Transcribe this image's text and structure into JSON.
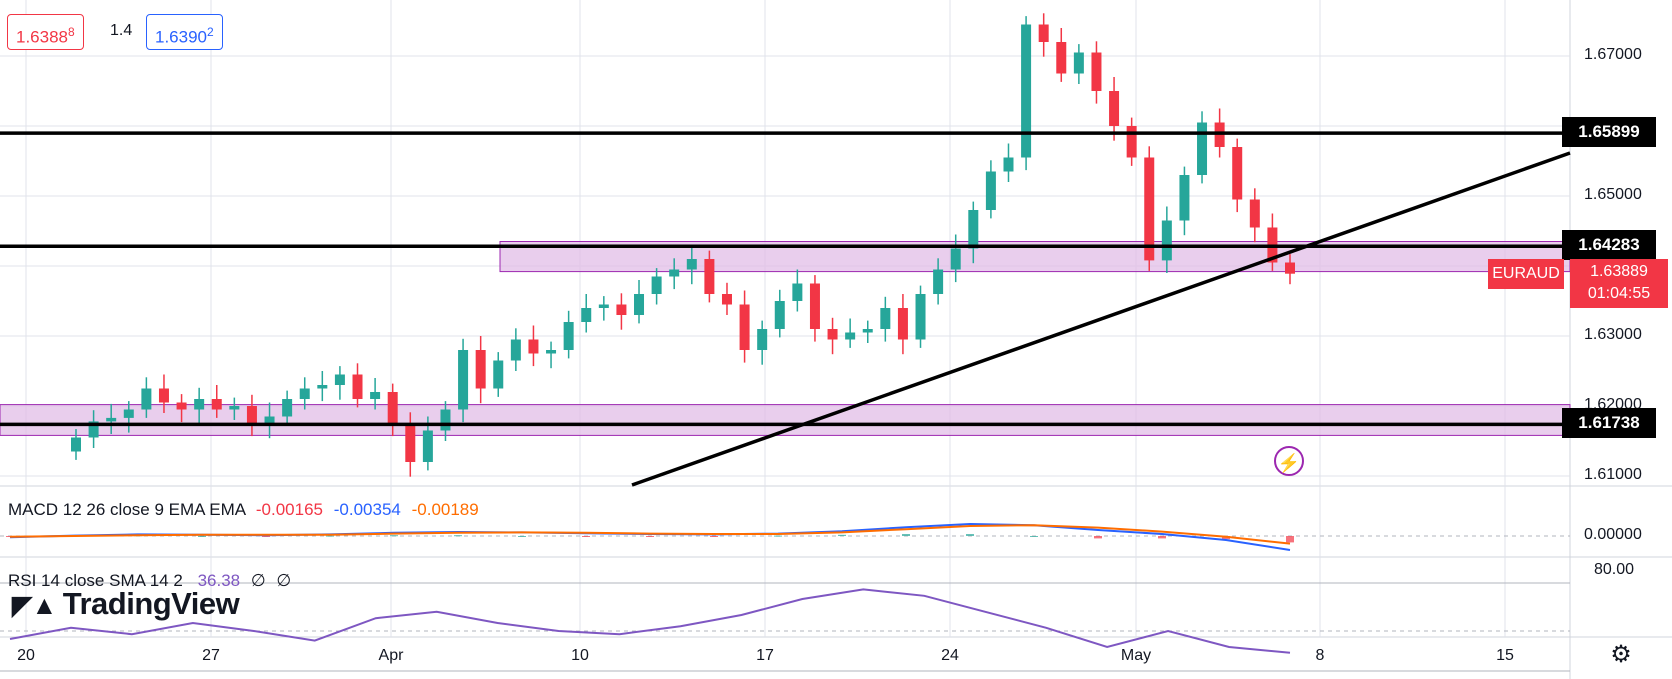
{
  "header": {
    "bid_price": "1.6388",
    "bid_pip": "8",
    "spread": "1.4",
    "ask_price": "1.6390",
    "ask_pip": "2"
  },
  "symbol": {
    "name": "EURAUD",
    "last_price": "1.63889",
    "countdown": "01:04:55",
    "color": "#f23645"
  },
  "price_axis": {
    "ticks": [
      "1.67000",
      "1.65000",
      "1.63000",
      "1.62000",
      "1.61000"
    ],
    "marked_levels": [
      "1.65899",
      "1.64283",
      "1.61738"
    ]
  },
  "time_axis": {
    "labels": [
      "20",
      "27",
      "Apr",
      "10",
      "17",
      "24",
      "May",
      "8",
      "15"
    ]
  },
  "macd": {
    "title": "MACD 12 26 close 9 EMA EMA",
    "histogram_value": "-0.00165",
    "macd_value": "-0.00354",
    "signal_value": "-0.00189",
    "axis_tick": "0.00000",
    "colors": {
      "histogram": "#f23645",
      "macd": "#2962ff",
      "signal": "#ff6d00"
    }
  },
  "rsi": {
    "title": "RSI 14 close SMA 14 2",
    "value": "36.38",
    "extra_1": "∅",
    "extra_2": "∅",
    "axis_tick": "80.00",
    "color": "#7e57c2"
  },
  "branding": {
    "logo_text": "TradingView"
  },
  "colors": {
    "up": "#26a69a",
    "down": "#f23645",
    "zone_fill": "#e1bee7",
    "zone_border": "#9c27b0",
    "level_line": "#000000",
    "grid": "#e0e3eb"
  },
  "chart_data": {
    "type": "candlestick",
    "x_range": [
      "2023-03-17",
      "2023-05-17"
    ],
    "price_range": [
      1.605,
      1.678
    ],
    "horizontal_levels": [
      1.65899,
      1.64283,
      1.61738
    ],
    "zones": [
      [
        1.6392,
        1.6435
      ],
      [
        1.6158,
        1.6202
      ]
    ],
    "trendline_points": [
      [
        1.604,
        1.6555
      ]
    ],
    "close_series": [
      1.6155,
      1.6178,
      1.6183,
      1.6195,
      1.6225,
      1.6205,
      1.6195,
      1.621,
      1.6195,
      1.62,
      1.6175,
      1.6185,
      1.621,
      1.6225,
      1.623,
      1.6245,
      1.621,
      1.622,
      1.6175,
      1.612,
      1.6165,
      1.6195,
      1.628,
      1.6225,
      1.6265,
      1.6295,
      1.6275,
      1.628,
      1.632,
      1.634,
      1.6345,
      1.633,
      1.636,
      1.6385,
      1.6395,
      1.641,
      1.636,
      1.6345,
      1.628,
      1.631,
      1.635,
      1.6375,
      1.631,
      1.6295,
      1.6305,
      1.631,
      1.634,
      1.6295,
      1.636,
      1.6395,
      1.6425,
      1.648,
      1.6535,
      1.6555,
      1.6745,
      1.672,
      1.6675,
      1.6705,
      1.665,
      1.66,
      1.6555,
      1.6408,
      1.6465,
      1.653,
      1.6605,
      1.657,
      1.6495,
      1.6455,
      1.6405,
      1.6389
    ],
    "series": [
      {
        "name": "MACD",
        "values": [
          -0.0003,
          0.0001,
          0.0004,
          0.0003,
          0.0002,
          0.0004,
          0.0008,
          0.001,
          0.0009,
          0.0007,
          0.0005,
          0.0004,
          0.0006,
          0.0012,
          0.0022,
          0.003,
          0.0027,
          0.0015,
          0.0005,
          -0.001,
          -0.0035
        ]
      },
      {
        "name": "Signal",
        "values": [
          -0.0002,
          0.0,
          0.0002,
          0.0003,
          0.0003,
          0.0003,
          0.0006,
          0.0008,
          0.0009,
          0.0008,
          0.0006,
          0.0005,
          0.0005,
          0.0009,
          0.0017,
          0.0025,
          0.0027,
          0.0021,
          0.0011,
          -0.0002,
          -0.0019
        ]
      },
      {
        "name": "RSI",
        "values": [
          45,
          52,
          48,
          55,
          50,
          44,
          58,
          62,
          55,
          50,
          48,
          53,
          60,
          70,
          76,
          72,
          62,
          52,
          40,
          50,
          40,
          36.38
        ]
      }
    ],
    "macd_range": [
      -0.006,
      0.004
    ],
    "rsi_range": [
      20,
      85
    ]
  }
}
